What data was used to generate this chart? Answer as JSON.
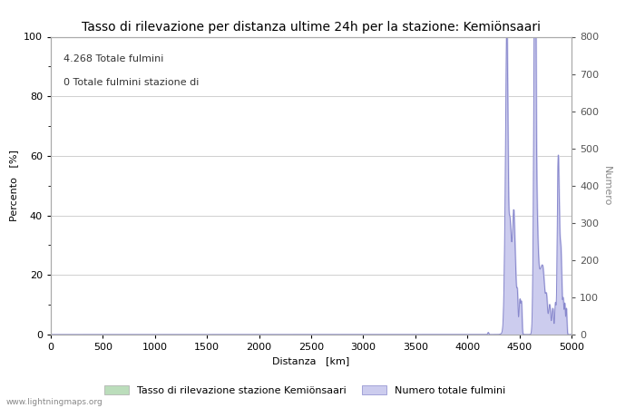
{
  "title": "Tasso di rilevazione per distanza ultime 24h per la stazione: Kemiönsaari",
  "annotation_line1": "4.268 Totale fulmini",
  "annotation_line2": "0 Totale fulmini stazione di",
  "xlabel": "Distanza   [km]",
  "ylabel_left": "Percento   [%]",
  "ylabel_right": "Numero",
  "watermark": "www.lightningmaps.org",
  "legend_label1": "Tasso di rilevazione stazione Kemiönsaari",
  "legend_label2": "Numero totale fulmini",
  "xlim": [
    0,
    5000
  ],
  "ylim_left": [
    0,
    100
  ],
  "ylim_right": [
    0,
    800
  ],
  "xticks": [
    0,
    500,
    1000,
    1500,
    2000,
    2500,
    3000,
    3500,
    4000,
    4500,
    5000
  ],
  "yticks_left": [
    0,
    20,
    40,
    60,
    80,
    100
  ],
  "yticks_right": [
    0,
    100,
    200,
    300,
    400,
    500,
    600,
    700,
    800
  ],
  "background_color": "#ffffff",
  "grid_color": "#c8c8c8",
  "line_color": "#8888cc",
  "fill_color": "#ccccee",
  "bar_color": "#bbddbb",
  "title_fontsize": 10,
  "label_fontsize": 8,
  "tick_fontsize": 8,
  "annotation_fontsize": 8
}
